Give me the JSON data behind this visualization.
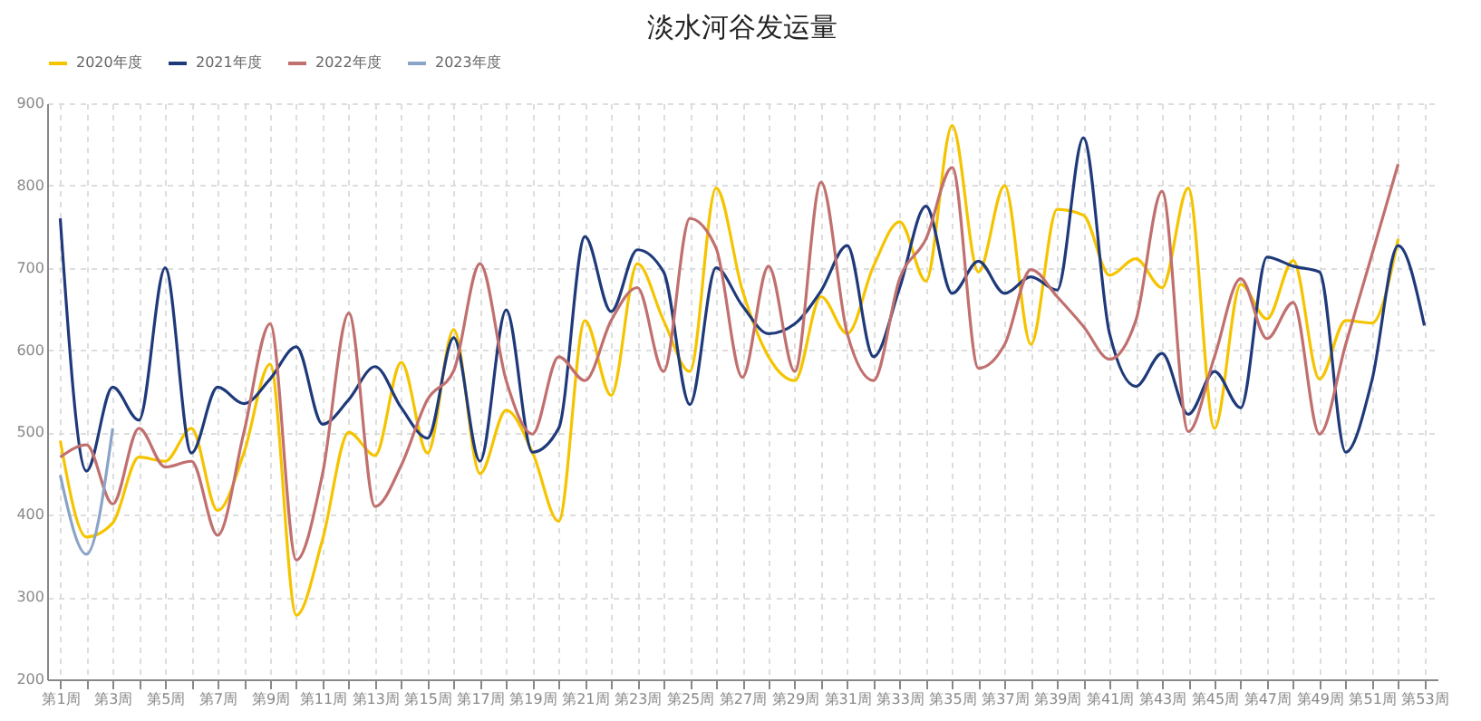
{
  "chart_data": {
    "type": "line",
    "title": "淡水河谷发运量",
    "categories": [
      "第1周",
      null,
      "第3周",
      null,
      "第5周",
      null,
      "第7周",
      null,
      "第9周",
      null,
      "第11周",
      null,
      "第13周",
      null,
      "第15周",
      null,
      "第17周",
      null,
      "第19周",
      null,
      "第21周",
      null,
      "第23周",
      null,
      "第25周",
      null,
      "第27周",
      null,
      "第29周",
      null,
      "第31周",
      null,
      "第33周",
      null,
      "第35周",
      null,
      "第37周",
      null,
      "第39周",
      null,
      "第41周",
      null,
      "第43周",
      null,
      "第45周",
      null,
      "第47周",
      null,
      "第49周",
      null,
      "第51周",
      null,
      "第53周"
    ],
    "series": [
      {
        "name": "2020年度",
        "color": "#f5c400",
        "values": [
          490,
          373,
          390,
          470,
          465,
          505,
          405,
          475,
          583,
          278,
          370,
          500,
          472,
          585,
          475,
          625,
          450,
          527,
          476,
          392,
          636,
          545,
          705,
          636,
          574,
          797,
          673,
          592,
          563,
          665,
          620,
          702,
          756,
          684,
          873,
          695,
          800,
          607,
          771,
          764,
          691,
          711,
          676,
          797,
          505,
          680,
          638,
          709,
          565,
          636,
          633,
          735,
          null
        ]
      },
      {
        "name": "2021年度",
        "color": "#1f3a7a",
        "values": [
          760,
          453,
          555,
          515,
          700,
          475,
          555,
          535,
          565,
          604,
          510,
          540,
          580,
          530,
          493,
          615,
          465,
          649,
          476,
          505,
          738,
          647,
          722,
          695,
          534,
          700,
          654,
          620,
          632,
          672,
          727,
          592,
          676,
          775,
          669,
          708,
          669,
          689,
          673,
          858,
          620,
          556,
          596,
          522,
          574,
          530,
          713,
          702,
          695,
          476,
          563,
          727,
          630
        ]
      },
      {
        "name": "2022年度",
        "color": "#c0706e",
        "values": [
          470,
          485,
          413,
          505,
          458,
          465,
          375,
          500,
          632,
          345,
          450,
          645,
          410,
          460,
          540,
          575,
          705,
          563,
          498,
          592,
          563,
          636,
          676,
          574,
          760,
          724,
          567,
          702,
          574,
          804,
          620,
          563,
          687,
          735,
          822,
          578,
          607,
          698,
          665,
          629,
          589,
          636,
          793,
          501,
          592,
          687,
          614,
          658,
          498,
          607,
          716,
          826,
          null
        ]
      },
      {
        "name": "2023年度",
        "color": "#8aa4c8",
        "values": [
          448,
          352,
          505,
          null,
          null,
          null,
          null,
          null,
          null,
          null,
          null,
          null,
          null,
          null,
          null,
          null,
          null,
          null,
          null,
          null,
          null,
          null,
          null,
          null,
          null,
          null,
          null,
          null,
          null,
          null,
          null,
          null,
          null,
          null,
          null,
          null,
          null,
          null,
          null,
          null,
          null,
          null,
          null,
          null,
          null,
          null,
          null,
          null,
          null,
          null,
          null,
          null,
          null
        ]
      }
    ],
    "ylim": [
      200,
      900
    ],
    "yticks": [
      200,
      300,
      400,
      500,
      600,
      700,
      800,
      900
    ],
    "grid": true,
    "legend": "top",
    "marker": "none",
    "line_style": "solid"
  }
}
